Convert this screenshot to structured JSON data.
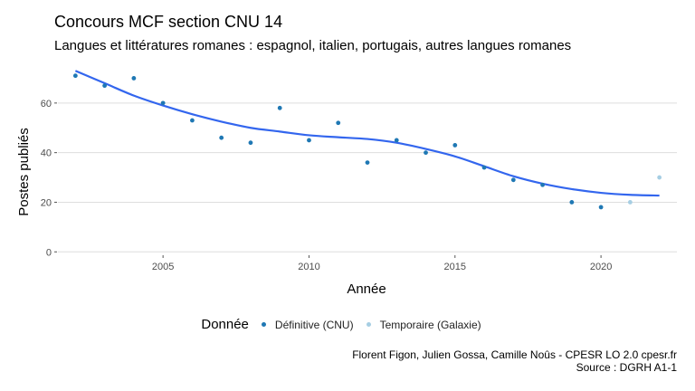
{
  "chart_data": {
    "type": "scatter",
    "title": "Concours MCF section CNU 14",
    "subtitle": "Langues et littératures romanes : espagnol, italien, portugais, autres langues romanes",
    "xlabel": "Année",
    "ylabel": "Postes publiés",
    "xlim": [
      2001.4,
      2022.6
    ],
    "ylim": [
      -1,
      76
    ],
    "x_ticks": [
      2005,
      2010,
      2015,
      2020
    ],
    "y_ticks": [
      0,
      20,
      40,
      60
    ],
    "grid": true,
    "legend": {
      "title": "Donnée",
      "position": "bottom"
    },
    "series": [
      {
        "name": "Définitive (CNU)",
        "color": "#1f78b4",
        "points": [
          {
            "x": 2002,
            "y": 71
          },
          {
            "x": 2003,
            "y": 67
          },
          {
            "x": 2004,
            "y": 70
          },
          {
            "x": 2005,
            "y": 60
          },
          {
            "x": 2006,
            "y": 53
          },
          {
            "x": 2007,
            "y": 46
          },
          {
            "x": 2008,
            "y": 44
          },
          {
            "x": 2009,
            "y": 58
          },
          {
            "x": 2010,
            "y": 45
          },
          {
            "x": 2011,
            "y": 52
          },
          {
            "x": 2012,
            "y": 36
          },
          {
            "x": 2013,
            "y": 45
          },
          {
            "x": 2014,
            "y": 40
          },
          {
            "x": 2015,
            "y": 43
          },
          {
            "x": 2016,
            "y": 34
          },
          {
            "x": 2017,
            "y": 29
          },
          {
            "x": 2018,
            "y": 27
          },
          {
            "x": 2019,
            "y": 20
          },
          {
            "x": 2020,
            "y": 18
          }
        ]
      },
      {
        "name": "Temporaire (Galaxie)",
        "color": "#a6cee3",
        "points": [
          {
            "x": 2021,
            "y": 20
          },
          {
            "x": 2022,
            "y": 30
          }
        ]
      }
    ],
    "trend": {
      "color": "#3366ee",
      "points": [
        {
          "x": 2002,
          "y": 73
        },
        {
          "x": 2003,
          "y": 68
        },
        {
          "x": 2004,
          "y": 63
        },
        {
          "x": 2005,
          "y": 59
        },
        {
          "x": 2006,
          "y": 55.5
        },
        {
          "x": 2007,
          "y": 52.5
        },
        {
          "x": 2008,
          "y": 50
        },
        {
          "x": 2009,
          "y": 48.5
        },
        {
          "x": 2010,
          "y": 47
        },
        {
          "x": 2011,
          "y": 46.2
        },
        {
          "x": 2012,
          "y": 45.5
        },
        {
          "x": 2013,
          "y": 44
        },
        {
          "x": 2014,
          "y": 41.5
        },
        {
          "x": 2015,
          "y": 38.5
        },
        {
          "x": 2016,
          "y": 34.5
        },
        {
          "x": 2017,
          "y": 30.5
        },
        {
          "x": 2018,
          "y": 27.5
        },
        {
          "x": 2019,
          "y": 25.3
        },
        {
          "x": 2020,
          "y": 23.8
        },
        {
          "x": 2021,
          "y": 23
        },
        {
          "x": 2022,
          "y": 22.7
        }
      ]
    },
    "caption": [
      "Florent Figon, Julien Gossa, Camille Noûs - CPESR LO 2.0 cpesr.fr",
      "Source : DGRH A1-1"
    ]
  }
}
